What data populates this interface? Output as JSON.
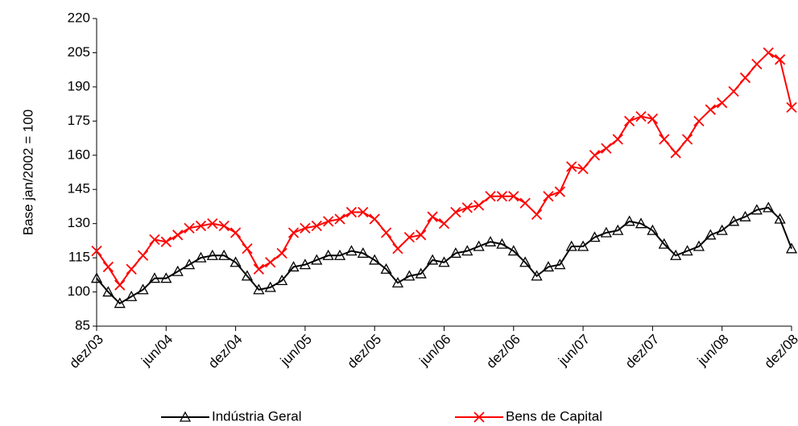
{
  "chart_data": {
    "type": "line",
    "y_label": "Base jan/2002 = 100",
    "categories": [
      "dez/03",
      null,
      null,
      null,
      null,
      null,
      "jun/04",
      null,
      null,
      null,
      null,
      null,
      "dez/04",
      null,
      null,
      null,
      null,
      null,
      "jun/05",
      null,
      null,
      null,
      null,
      null,
      "dez/05",
      null,
      null,
      null,
      null,
      null,
      "jun/06",
      null,
      null,
      null,
      null,
      null,
      "dez/06",
      null,
      null,
      null,
      null,
      null,
      "jun/07",
      null,
      null,
      null,
      null,
      null,
      "dez/07",
      null,
      null,
      null,
      null,
      null,
      "jun/08",
      null,
      null,
      null,
      null,
      null,
      "dez/08"
    ],
    "series": [
      {
        "name": "Indústria Geral",
        "color": "#000000",
        "marker": "triangle",
        "values": [
          106,
          100,
          95,
          98,
          101,
          106,
          106,
          109,
          112,
          115,
          116,
          116,
          113,
          107,
          101,
          102,
          105,
          111,
          112,
          114,
          116,
          116,
          118,
          117,
          114,
          110,
          104,
          107,
          108,
          114,
          113,
          117,
          118,
          120,
          122,
          121,
          118,
          113,
          107,
          111,
          112,
          120,
          120,
          124,
          126,
          127,
          131,
          130,
          127,
          121,
          116,
          118,
          120,
          125,
          127,
          131,
          133,
          136,
          137,
          132,
          119
        ]
      },
      {
        "name": "Bens de Capital",
        "color": "#ff0000",
        "marker": "x",
        "values": [
          118,
          111,
          103,
          110,
          116,
          123,
          122,
          125,
          128,
          129,
          130,
          129,
          126,
          119,
          110,
          113,
          117,
          126,
          128,
          129,
          131,
          132,
          135,
          135,
          132,
          126,
          119,
          124,
          125,
          133,
          130,
          135,
          137,
          138,
          142,
          142,
          142,
          139,
          134,
          142,
          144,
          155,
          154,
          160,
          163,
          167,
          175,
          177,
          176,
          167,
          161,
          167,
          175,
          180,
          183,
          188,
          194,
          200,
          205,
          202,
          181
        ]
      }
    ],
    "ylim": [
      85,
      220
    ],
    "yticks": [
      85,
      100,
      115,
      130,
      145,
      160,
      175,
      190,
      205,
      220
    ],
    "grid": false,
    "legend": "bottom"
  }
}
